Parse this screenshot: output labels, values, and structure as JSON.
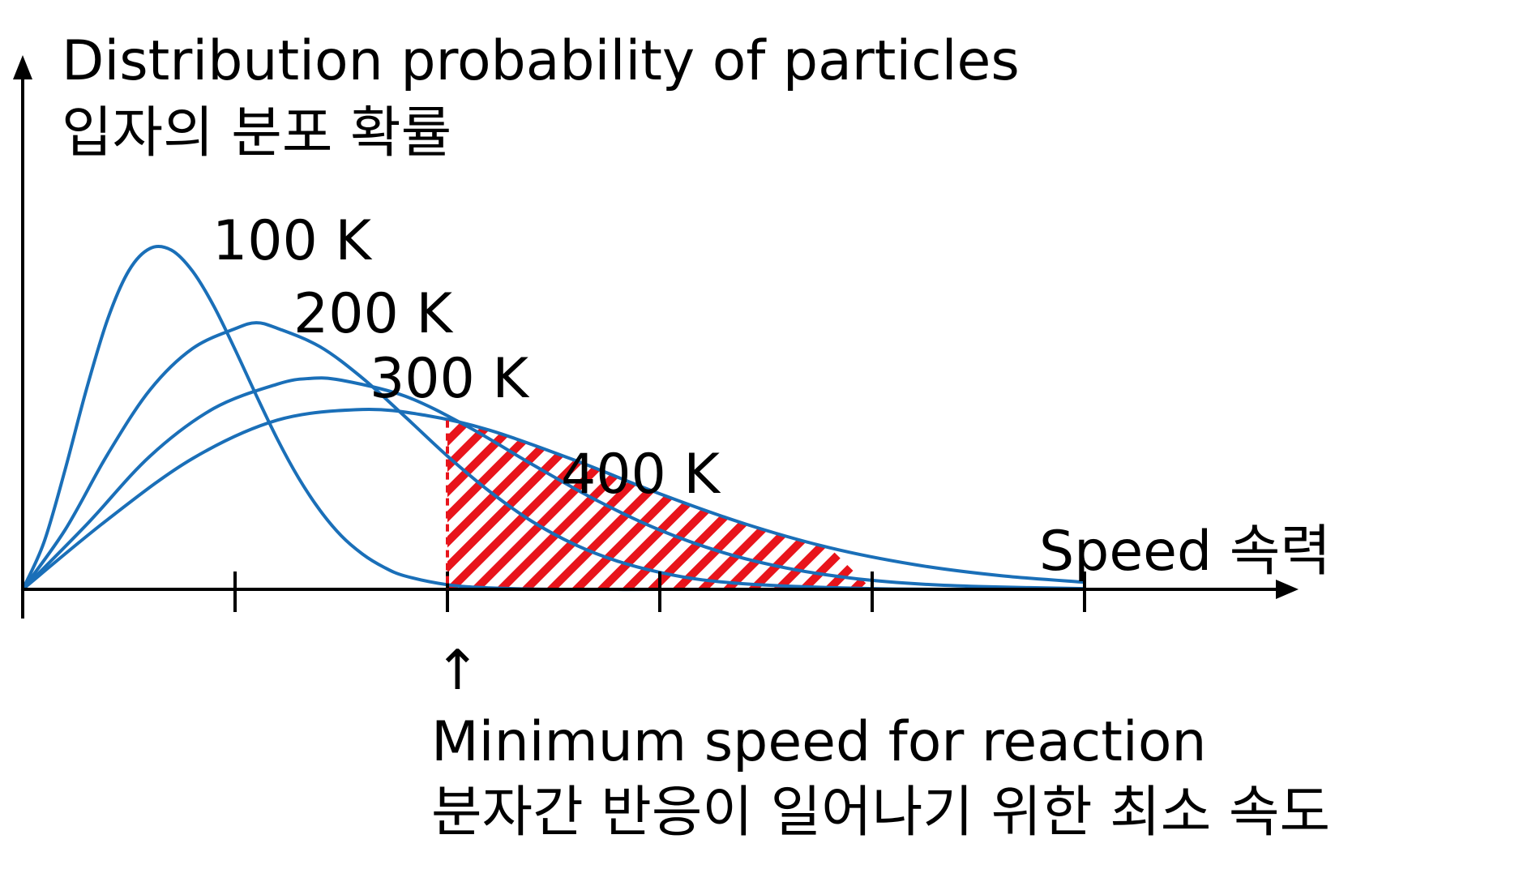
{
  "chart_data": {
    "type": "line",
    "ylabel": "Distribution probability of particles",
    "ylabel_ko": "입자의 분포 확률",
    "xlabel": "Speed 속력",
    "x_range": [
      0,
      5.2
    ],
    "y_range": [
      0,
      1.0
    ],
    "x_ticks": [
      1,
      2,
      3,
      4,
      5
    ],
    "grid": false,
    "legend": "none",
    "series": [
      {
        "name": "100 K",
        "x": [
          0,
          0.1,
          0.2,
          0.3,
          0.4,
          0.5,
          0.6,
          0.7,
          0.8,
          0.9,
          1.0,
          1.1,
          1.2,
          1.3,
          1.4,
          1.5,
          1.6,
          1.7,
          1.8,
          2.0,
          2.2,
          2.5,
          3.0,
          3.5,
          4.0,
          4.5,
          5.0
        ],
        "y": [
          0,
          0.133,
          0.34,
          0.567,
          0.766,
          0.904,
          0.967,
          0.962,
          0.902,
          0.803,
          0.68,
          0.55,
          0.425,
          0.315,
          0.224,
          0.152,
          0.1,
          0.063,
          0.038,
          0.013,
          0.004,
          0.0,
          0.0,
          0.0,
          0.0,
          0.0,
          0.0
        ]
      },
      {
        "name": "200 K",
        "x": [
          0,
          0.2,
          0.4,
          0.6,
          0.8,
          1.0,
          1.1,
          1.2,
          1.4,
          1.6,
          1.8,
          2.0,
          2.2,
          2.4,
          2.6,
          2.8,
          3.0,
          3.2,
          3.5,
          4.0,
          4.5,
          5.0
        ],
        "y": [
          0,
          0.169,
          0.383,
          0.566,
          0.683,
          0.739,
          0.756,
          0.74,
          0.688,
          0.599,
          0.49,
          0.378,
          0.277,
          0.192,
          0.127,
          0.08,
          0.048,
          0.027,
          0.012,
          0.002,
          0.0,
          0.0
        ]
      },
      {
        "name": "300 K",
        "x": [
          0,
          0.3,
          0.6,
          0.9,
          1.2,
          1.35,
          1.5,
          1.8,
          2.1,
          2.4,
          2.7,
          3.0,
          3.3,
          3.6,
          3.9,
          4.2,
          4.5,
          5.0
        ],
        "y": [
          0,
          0.183,
          0.378,
          0.513,
          0.582,
          0.598,
          0.593,
          0.548,
          0.46,
          0.354,
          0.253,
          0.168,
          0.104,
          0.06,
          0.032,
          0.016,
          0.008,
          0.002
        ]
      },
      {
        "name": "400 K",
        "x": [
          0,
          0.4,
          0.8,
          1.2,
          1.6,
          1.9,
          2.2,
          2.6,
          3.0,
          3.4,
          3.8,
          4.2,
          4.6,
          5.0
        ],
        "y": [
          0,
          0.198,
          0.371,
          0.48,
          0.51,
          0.493,
          0.451,
          0.366,
          0.271,
          0.186,
          0.118,
          0.07,
          0.039,
          0.02
        ]
      }
    ],
    "threshold_x": 2.0,
    "annotation_arrow": "↑",
    "annotation": "Minimum speed for reaction",
    "annotation_ko": "분자간 반응이 일어나기 위한 최소 속도",
    "line_color": "#1a6fb8",
    "shade_color": "#e8141b",
    "axis_color": "#000000"
  }
}
